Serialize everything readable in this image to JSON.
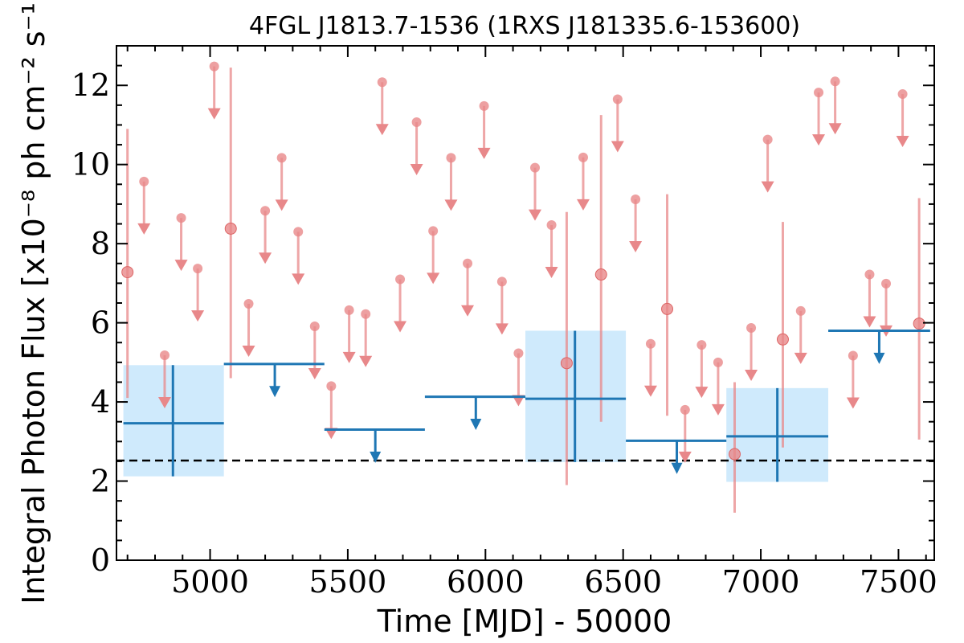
{
  "chart_data": {
    "type": "scatter",
    "title": "4FGL J1813.7-1536 (1RXS J181335.6-153600)",
    "xlabel": "Time [MJD] - 50000",
    "ylabel": "Integral Photon Flux [x10⁻⁸ ph cm⁻² s⁻¹]",
    "xlim": [
      4660,
      7630
    ],
    "ylim": [
      0,
      13
    ],
    "xticks": [
      5000,
      5500,
      6000,
      6500,
      7000,
      7500
    ],
    "xtick_labels": [
      "5000",
      "5500",
      "6000",
      "6500",
      "7000",
      "7500"
    ],
    "yticks": [
      0,
      2,
      4,
      6,
      8,
      10,
      12
    ],
    "ytick_labels": [
      "0",
      "2",
      "4",
      "6",
      "8",
      "10",
      "12"
    ],
    "reference_line": {
      "y": 2.52,
      "style": "dashed"
    },
    "colors": {
      "short_bins": "#e8888a",
      "long_bins": "#1f77b4",
      "long_band": "#cfeafc",
      "ref_line": "#000000"
    },
    "series": [
      {
        "points": [
          {
            "x": 4700,
            "y": 7.28,
            "lo": 4.1,
            "hi": 10.9
          },
          {
            "x": 5075,
            "y": 8.38,
            "lo": 4.6,
            "hi": 12.45
          },
          {
            "x": 6295,
            "y": 4.98,
            "lo": 1.9,
            "hi": 8.8
          },
          {
            "x": 6420,
            "y": 7.22,
            "lo": 3.5,
            "hi": 11.25
          },
          {
            "x": 6660,
            "y": 6.35,
            "lo": 3.65,
            "hi": 9.25
          },
          {
            "x": 6905,
            "y": 2.68,
            "lo": 1.2,
            "hi": 4.5
          },
          {
            "x": 7080,
            "y": 5.58,
            "lo": 2.85,
            "hi": 8.55
          },
          {
            "x": 7575,
            "y": 5.98,
            "lo": 3.05,
            "hi": 9.15
          }
        ],
        "upper_limits": [
          {
            "x": 4760,
            "y": 9.57
          },
          {
            "x": 4835,
            "y": 5.18
          },
          {
            "x": 4895,
            "y": 8.65
          },
          {
            "x": 4955,
            "y": 7.37
          },
          {
            "x": 5015,
            "y": 12.48
          },
          {
            "x": 5140,
            "y": 6.48
          },
          {
            "x": 5200,
            "y": 8.83
          },
          {
            "x": 5260,
            "y": 10.17
          },
          {
            "x": 5320,
            "y": 8.3
          },
          {
            "x": 5380,
            "y": 5.91
          },
          {
            "x": 5440,
            "y": 4.4
          },
          {
            "x": 5505,
            "y": 6.32
          },
          {
            "x": 5565,
            "y": 6.22
          },
          {
            "x": 5625,
            "y": 12.08
          },
          {
            "x": 5690,
            "y": 7.1
          },
          {
            "x": 5750,
            "y": 11.07
          },
          {
            "x": 5810,
            "y": 8.32
          },
          {
            "x": 5875,
            "y": 10.17
          },
          {
            "x": 5935,
            "y": 7.5
          },
          {
            "x": 5995,
            "y": 11.48
          },
          {
            "x": 6060,
            "y": 7.04
          },
          {
            "x": 6120,
            "y": 5.23
          },
          {
            "x": 6180,
            "y": 9.92
          },
          {
            "x": 6240,
            "y": 8.47
          },
          {
            "x": 6355,
            "y": 10.18
          },
          {
            "x": 6480,
            "y": 11.65
          },
          {
            "x": 6545,
            "y": 9.12
          },
          {
            "x": 6600,
            "y": 5.47
          },
          {
            "x": 6725,
            "y": 3.8
          },
          {
            "x": 6785,
            "y": 5.44
          },
          {
            "x": 6845,
            "y": 5.0
          },
          {
            "x": 6965,
            "y": 5.87
          },
          {
            "x": 7025,
            "y": 10.63
          },
          {
            "x": 7145,
            "y": 6.3
          },
          {
            "x": 7210,
            "y": 11.82
          },
          {
            "x": 7270,
            "y": 12.1
          },
          {
            "x": 7335,
            "y": 5.17
          },
          {
            "x": 7395,
            "y": 7.22
          },
          {
            "x": 7455,
            "y": 6.99
          },
          {
            "x": 7515,
            "y": 11.78
          }
        ]
      },
      {
        "points": [
          {
            "x": 4865,
            "x0": 4685,
            "x1": 5050,
            "y": 3.46,
            "lo": 2.12,
            "hi": 4.93
          },
          {
            "x": 6325,
            "x0": 6145,
            "x1": 6510,
            "y": 4.08,
            "lo": 2.48,
            "hi": 5.8
          },
          {
            "x": 7060,
            "x0": 6875,
            "x1": 7245,
            "y": 3.13,
            "lo": 1.98,
            "hi": 4.35
          }
        ],
        "upper_limits": [
          {
            "x": 5235,
            "x0": 5050,
            "x1": 5415,
            "y": 4.96
          },
          {
            "x": 5600,
            "x0": 5415,
            "x1": 5780,
            "y": 3.3
          },
          {
            "x": 5965,
            "x0": 5780,
            "x1": 6145,
            "y": 4.13
          },
          {
            "x": 6695,
            "x0": 6510,
            "x1": 6875,
            "y": 3.02
          },
          {
            "x": 7430,
            "x0": 7245,
            "x1": 7615,
            "y": 5.8
          }
        ]
      }
    ]
  }
}
